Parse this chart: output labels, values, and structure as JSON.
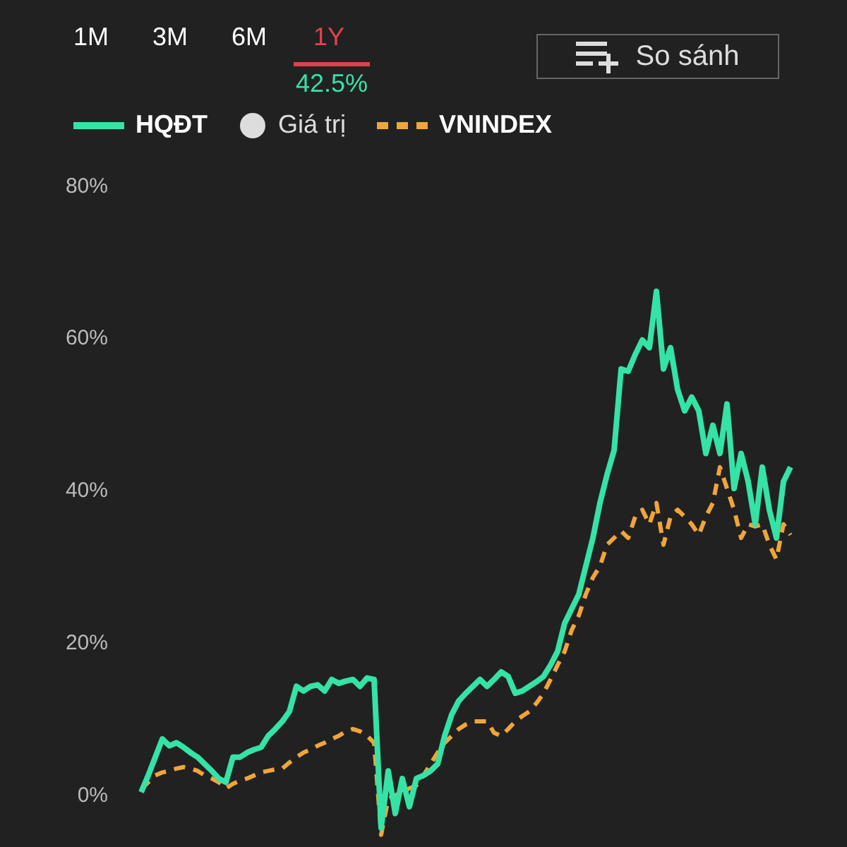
{
  "chart_data": {
    "type": "line",
    "annotations": [
      "1M",
      "3M",
      "6M",
      "1Y",
      "42.5%",
      "So sánh",
      "Giá trị"
    ],
    "categories": [
      null,
      null,
      null,
      null,
      null,
      null,
      null,
      null,
      null,
      null,
      null,
      null,
      null,
      null,
      null,
      null,
      null,
      null,
      null,
      null,
      null,
      null,
      null,
      null,
      null,
      null,
      null,
      null,
      null,
      null,
      null,
      null,
      null,
      null,
      null,
      null,
      null,
      null,
      null,
      null,
      null,
      null,
      null,
      null,
      null,
      null,
      null,
      null,
      null,
      null,
      null,
      null,
      null,
      null,
      null,
      null,
      null,
      null,
      null,
      null,
      null,
      null,
      null,
      null,
      null,
      null,
      null,
      null,
      null,
      null,
      null,
      null,
      null,
      null,
      null,
      null,
      null,
      null,
      null,
      null,
      null,
      null,
      null,
      null,
      null,
      null,
      null,
      null,
      null,
      null,
      null,
      null,
      null
    ],
    "series": [
      {
        "name": "HQĐT",
        "color": "#34e3a5",
        "line_style": "solid",
        "values": [
          0.2,
          2.4,
          4.8,
          7.2,
          6.3,
          6.7,
          6.1,
          5.4,
          4.8,
          3.9,
          3.0,
          2.0,
          1.5,
          4.8,
          4.8,
          5.4,
          5.8,
          6.1,
          7.6,
          8.5,
          9.5,
          10.8,
          14.1,
          13.5,
          14.1,
          14.3,
          13.5,
          15.0,
          14.5,
          14.8,
          15.0,
          14.1,
          15.2,
          15.0,
          -4.5,
          3.0,
          -2.6,
          2.0,
          -1.7,
          2.0,
          2.4,
          3.0,
          3.9,
          7.6,
          10.4,
          12.2,
          13.2,
          14.1,
          15.0,
          14.1,
          15.0,
          16.0,
          15.4,
          13.2,
          13.5,
          14.1,
          14.7,
          15.4,
          16.9,
          18.7,
          22.4,
          24.3,
          26.2,
          29.9,
          33.6,
          38.2,
          41.9,
          45.1,
          55.8,
          55.5,
          57.7,
          59.6,
          58.6,
          66.0,
          55.8,
          58.6,
          53.1,
          50.3,
          52.1,
          50.3,
          44.7,
          48.4,
          44.7,
          51.2,
          40.1,
          44.7,
          41.0,
          35.4,
          42.9,
          37.3,
          33.6,
          41.0,
          42.9
        ]
      },
      {
        "name": "VNINDEX",
        "color": "#f0a53a",
        "line_style": "dashed",
        "values": [
          0.6,
          1.5,
          2.4,
          2.8,
          3.0,
          3.3,
          3.5,
          3.3,
          3.0,
          2.4,
          2.0,
          1.5,
          0.7,
          1.3,
          1.7,
          2.0,
          2.4,
          2.8,
          3.0,
          3.2,
          3.3,
          4.1,
          4.8,
          5.4,
          5.8,
          6.3,
          6.7,
          7.2,
          7.6,
          8.2,
          8.5,
          8.2,
          7.6,
          6.7,
          -5.4,
          -0.7,
          -0.2,
          0.2,
          0.7,
          1.1,
          2.4,
          3.9,
          5.4,
          6.7,
          7.6,
          8.5,
          9.1,
          9.5,
          9.5,
          9.5,
          8.0,
          7.6,
          8.5,
          9.5,
          10.2,
          10.8,
          11.9,
          13.2,
          15.0,
          16.9,
          18.7,
          21.5,
          23.4,
          26.2,
          28.4,
          29.9,
          32.7,
          33.6,
          34.5,
          33.6,
          36.4,
          37.3,
          35.4,
          38.2,
          32.7,
          36.4,
          37.3,
          36.4,
          35.4,
          34.0,
          36.4,
          38.2,
          42.9,
          40.1,
          37.3,
          33.6,
          35.4,
          35.1,
          35.4,
          32.7,
          30.8,
          35.4,
          34.0
        ]
      }
    ],
    "ylim": [
      -7,
      83.5
    ],
    "yticks": [
      {
        "value": 0,
        "label": "0%"
      },
      {
        "value": 20,
        "label": "20%"
      },
      {
        "value": 40,
        "label": "40%"
      },
      {
        "value": 60,
        "label": "60%"
      },
      {
        "value": 80,
        "label": "80%"
      }
    ],
    "grid": false,
    "legend": "top left",
    "marker": "none"
  }
}
